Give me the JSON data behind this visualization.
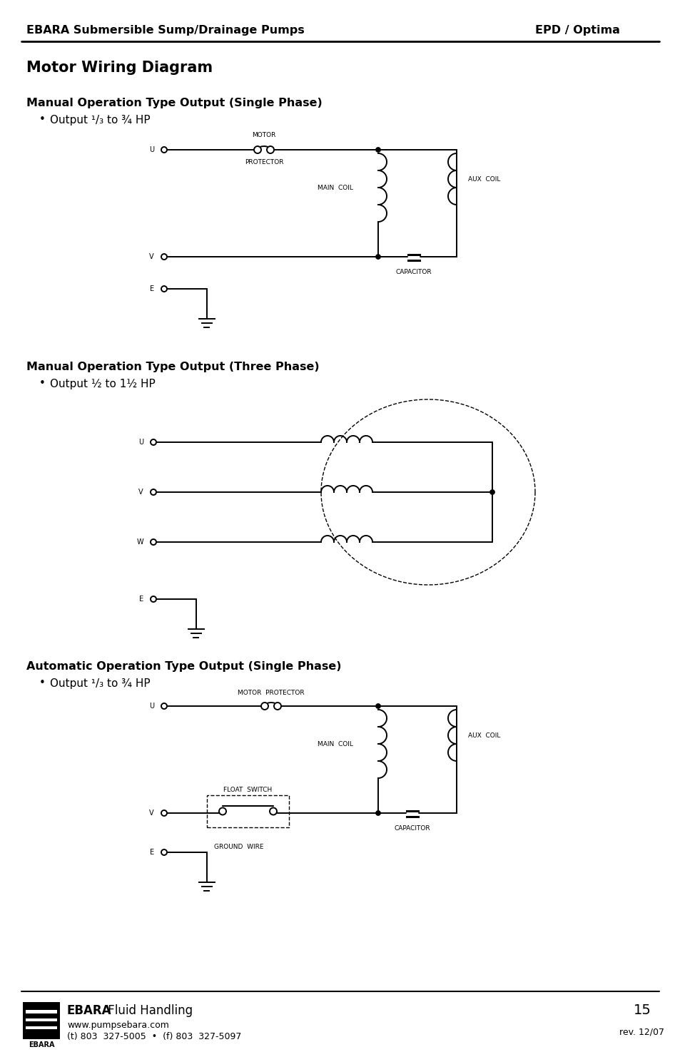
{
  "header_left": "EBARA Submersible Sump/Drainage Pumps",
  "header_right": "EPD / Optima",
  "main_title": "Motor Wiring Diagram",
  "section1_title": "Manual Operation Type Output (Single Phase)",
  "section1_bullet": "Output ¹/₃ to ¾ HP",
  "section2_title": "Manual Operation Type Output (Three Phase)",
  "section2_bullet": "Output ½ to 1½ HP",
  "section3_title": "Automatic Operation Type Output (Single Phase)",
  "section3_bullet": "Output ¹/₃ to ¾ HP",
  "footer_company": "EBARA",
  "footer_name": " Fluid Handling",
  "footer_url": "www.pumpsebara.com",
  "footer_phone": "(t) 803  327-5005  •  (f) 803  327-5097",
  "footer_page": "15",
  "footer_rev": "rev. 12/07",
  "bg_color": "#ffffff",
  "line_color": "#000000"
}
